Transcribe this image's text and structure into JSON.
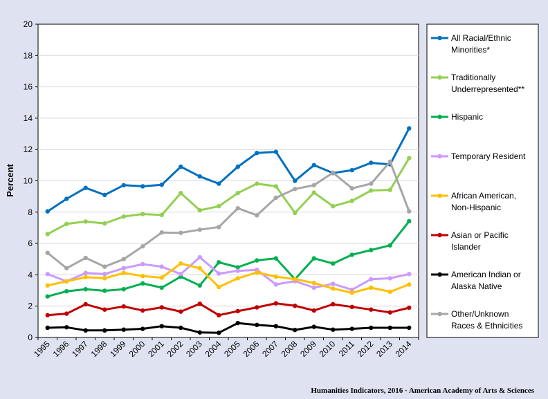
{
  "footer": "Humanities Indicators, 2016 · American Academy of Arts & Sciences",
  "chart_data": {
    "type": "line",
    "ylabel": "Percent",
    "xlabel": "",
    "ylim": [
      0,
      20
    ],
    "yticks": [
      0,
      2,
      4,
      6,
      8,
      10,
      12,
      14,
      16,
      18,
      20
    ],
    "grid": "horizontal",
    "legend_position": "right",
    "categories": [
      "1995",
      "1996",
      "1997",
      "1998",
      "1999",
      "2000",
      "2001",
      "2002",
      "2003",
      "2004",
      "2005",
      "2006",
      "2007",
      "2008",
      "2009",
      "2010",
      "2011",
      "2012",
      "2013",
      "2014"
    ],
    "series": [
      {
        "name": "All Racial/Ethnic Minorities*",
        "color": "#0070c0",
        "values": [
          8.05,
          8.85,
          9.55,
          9.1,
          9.72,
          9.65,
          9.75,
          10.9,
          10.28,
          9.82,
          10.9,
          11.78,
          11.85,
          10.0,
          11.0,
          10.5,
          10.68,
          11.15,
          11.05,
          13.35
        ]
      },
      {
        "name": "Traditionally Underrepresented**",
        "color": "#92d050",
        "values": [
          6.6,
          7.25,
          7.4,
          7.28,
          7.72,
          7.88,
          7.82,
          9.22,
          8.12,
          8.38,
          9.22,
          9.82,
          9.65,
          7.95,
          9.25,
          8.38,
          8.72,
          9.38,
          9.42,
          11.45
        ]
      },
      {
        "name": "Hispanic",
        "color": "#00b050",
        "values": [
          2.62,
          2.95,
          3.08,
          2.98,
          3.08,
          3.45,
          3.18,
          3.88,
          3.32,
          4.8,
          4.48,
          4.92,
          5.05,
          3.72,
          5.05,
          4.72,
          5.28,
          5.58,
          5.88,
          7.42
        ]
      },
      {
        "name": "Temporary Resident",
        "color": "#cc99ff",
        "values": [
          4.05,
          3.58,
          4.12,
          4.05,
          4.42,
          4.68,
          4.52,
          4.05,
          5.12,
          4.08,
          4.25,
          4.32,
          3.38,
          3.6,
          3.18,
          3.42,
          3.05,
          3.72,
          3.78,
          4.05
        ]
      },
      {
        "name": "African American, Non-Hispanic",
        "color": "#ffc000",
        "values": [
          3.32,
          3.58,
          3.85,
          3.78,
          4.12,
          3.92,
          3.82,
          4.72,
          4.42,
          3.22,
          3.78,
          4.15,
          3.88,
          3.72,
          3.48,
          3.12,
          2.85,
          3.18,
          2.92,
          3.38
        ]
      },
      {
        "name": "Asian or Pacific Islander",
        "color": "#c00000",
        "values": [
          1.42,
          1.52,
          2.12,
          1.78,
          1.98,
          1.72,
          1.92,
          1.65,
          2.15,
          1.42,
          1.68,
          1.92,
          2.18,
          2.02,
          1.72,
          2.12,
          1.95,
          1.78,
          1.6,
          1.9
        ]
      },
      {
        "name": "American Indian or Alaska Native",
        "color": "#000000",
        "values": [
          0.62,
          0.65,
          0.45,
          0.45,
          0.5,
          0.55,
          0.72,
          0.62,
          0.32,
          0.3,
          0.92,
          0.8,
          0.72,
          0.48,
          0.68,
          0.5,
          0.55,
          0.62,
          0.62,
          0.62
        ]
      },
      {
        "name": "Other/Unknown Races & Ethnicities",
        "color": "#a6a6a6",
        "values": [
          5.4,
          4.42,
          5.08,
          4.52,
          5.0,
          5.82,
          6.7,
          6.68,
          6.88,
          7.05,
          8.25,
          7.8,
          8.92,
          9.48,
          9.72,
          10.52,
          9.52,
          9.82,
          11.22,
          8.05
        ]
      }
    ]
  }
}
